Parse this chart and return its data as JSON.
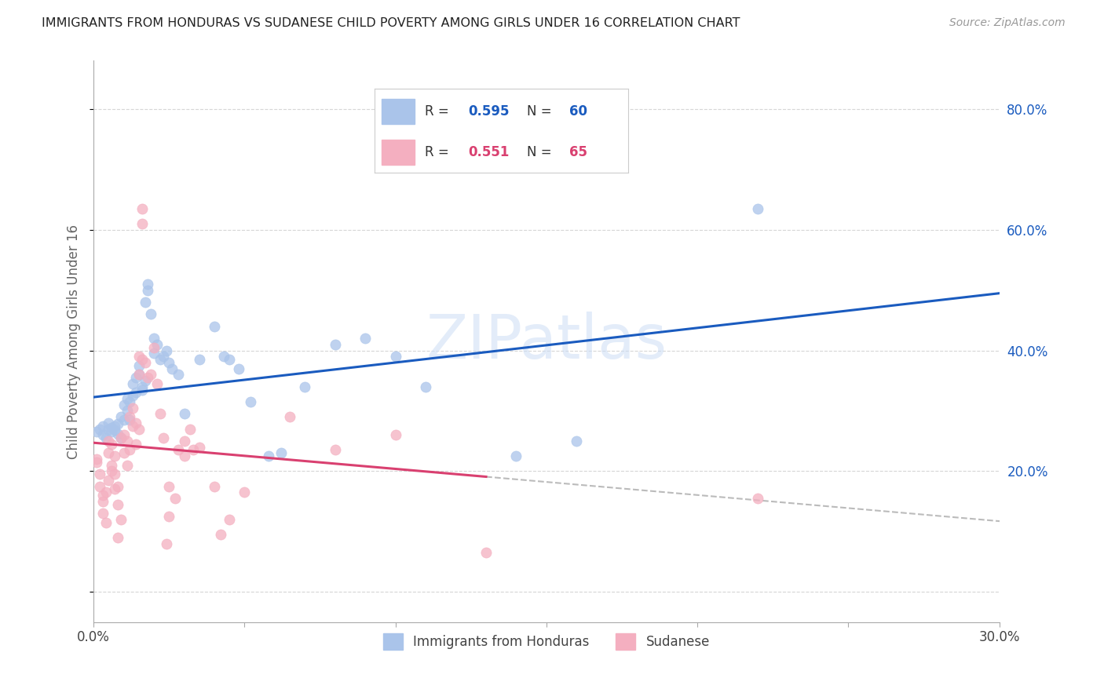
{
  "title": "IMMIGRANTS FROM HONDURAS VS SUDANESE CHILD POVERTY AMONG GIRLS UNDER 16 CORRELATION CHART",
  "source": "Source: ZipAtlas.com",
  "ylabel": "Child Poverty Among Girls Under 16",
  "xlim": [
    0.0,
    0.3
  ],
  "ylim": [
    -0.05,
    0.88
  ],
  "yticks": [
    0.0,
    0.2,
    0.4,
    0.6,
    0.8
  ],
  "yticklabels": [
    "",
    "20.0%",
    "40.0%",
    "60.0%",
    "80.0%"
  ],
  "legend_labels": [
    "Immigrants from Honduras",
    "Sudanese"
  ],
  "blue_R": "0.595",
  "blue_N": "60",
  "pink_R": "0.551",
  "pink_N": "65",
  "blue_color": "#aac4ea",
  "pink_color": "#f4afc0",
  "blue_line_color": "#1a5bbf",
  "pink_line_color": "#d94070",
  "blue_scatter": [
    [
      0.001,
      0.265
    ],
    [
      0.002,
      0.27
    ],
    [
      0.003,
      0.26
    ],
    [
      0.003,
      0.275
    ],
    [
      0.004,
      0.255
    ],
    [
      0.005,
      0.27
    ],
    [
      0.005,
      0.28
    ],
    [
      0.006,
      0.272
    ],
    [
      0.006,
      0.265
    ],
    [
      0.007,
      0.275
    ],
    [
      0.007,
      0.268
    ],
    [
      0.008,
      0.262
    ],
    [
      0.008,
      0.278
    ],
    [
      0.009,
      0.255
    ],
    [
      0.009,
      0.29
    ],
    [
      0.01,
      0.285
    ],
    [
      0.01,
      0.31
    ],
    [
      0.011,
      0.32
    ],
    [
      0.011,
      0.3
    ],
    [
      0.012,
      0.315
    ],
    [
      0.012,
      0.285
    ],
    [
      0.013,
      0.325
    ],
    [
      0.013,
      0.345
    ],
    [
      0.014,
      0.33
    ],
    [
      0.014,
      0.355
    ],
    [
      0.015,
      0.36
    ],
    [
      0.015,
      0.375
    ],
    [
      0.016,
      0.335
    ],
    [
      0.016,
      0.34
    ],
    [
      0.017,
      0.35
    ],
    [
      0.017,
      0.48
    ],
    [
      0.018,
      0.5
    ],
    [
      0.018,
      0.51
    ],
    [
      0.019,
      0.46
    ],
    [
      0.02,
      0.42
    ],
    [
      0.02,
      0.395
    ],
    [
      0.021,
      0.41
    ],
    [
      0.022,
      0.385
    ],
    [
      0.023,
      0.39
    ],
    [
      0.024,
      0.4
    ],
    [
      0.025,
      0.38
    ],
    [
      0.026,
      0.37
    ],
    [
      0.028,
      0.36
    ],
    [
      0.03,
      0.295
    ],
    [
      0.035,
      0.385
    ],
    [
      0.04,
      0.44
    ],
    [
      0.043,
      0.39
    ],
    [
      0.045,
      0.385
    ],
    [
      0.048,
      0.37
    ],
    [
      0.052,
      0.315
    ],
    [
      0.058,
      0.225
    ],
    [
      0.062,
      0.23
    ],
    [
      0.07,
      0.34
    ],
    [
      0.08,
      0.41
    ],
    [
      0.09,
      0.42
    ],
    [
      0.1,
      0.39
    ],
    [
      0.11,
      0.34
    ],
    [
      0.14,
      0.225
    ],
    [
      0.16,
      0.25
    ],
    [
      0.22,
      0.635
    ]
  ],
  "pink_scatter": [
    [
      0.001,
      0.22
    ],
    [
      0.001,
      0.215
    ],
    [
      0.002,
      0.195
    ],
    [
      0.002,
      0.175
    ],
    [
      0.003,
      0.16
    ],
    [
      0.003,
      0.15
    ],
    [
      0.003,
      0.13
    ],
    [
      0.004,
      0.165
    ],
    [
      0.004,
      0.115
    ],
    [
      0.005,
      0.185
    ],
    [
      0.005,
      0.23
    ],
    [
      0.005,
      0.25
    ],
    [
      0.006,
      0.245
    ],
    [
      0.006,
      0.21
    ],
    [
      0.006,
      0.2
    ],
    [
      0.007,
      0.225
    ],
    [
      0.007,
      0.195
    ],
    [
      0.007,
      0.17
    ],
    [
      0.008,
      0.175
    ],
    [
      0.008,
      0.145
    ],
    [
      0.008,
      0.09
    ],
    [
      0.009,
      0.12
    ],
    [
      0.009,
      0.255
    ],
    [
      0.01,
      0.26
    ],
    [
      0.01,
      0.23
    ],
    [
      0.011,
      0.25
    ],
    [
      0.011,
      0.21
    ],
    [
      0.012,
      0.235
    ],
    [
      0.012,
      0.29
    ],
    [
      0.013,
      0.305
    ],
    [
      0.013,
      0.275
    ],
    [
      0.014,
      0.28
    ],
    [
      0.014,
      0.245
    ],
    [
      0.015,
      0.27
    ],
    [
      0.015,
      0.36
    ],
    [
      0.015,
      0.39
    ],
    [
      0.016,
      0.385
    ],
    [
      0.016,
      0.61
    ],
    [
      0.016,
      0.635
    ],
    [
      0.017,
      0.38
    ],
    [
      0.018,
      0.355
    ],
    [
      0.019,
      0.36
    ],
    [
      0.02,
      0.405
    ],
    [
      0.021,
      0.345
    ],
    [
      0.022,
      0.295
    ],
    [
      0.023,
      0.255
    ],
    [
      0.024,
      0.08
    ],
    [
      0.025,
      0.125
    ],
    [
      0.025,
      0.175
    ],
    [
      0.027,
      0.155
    ],
    [
      0.028,
      0.235
    ],
    [
      0.03,
      0.25
    ],
    [
      0.03,
      0.225
    ],
    [
      0.032,
      0.27
    ],
    [
      0.033,
      0.235
    ],
    [
      0.035,
      0.24
    ],
    [
      0.04,
      0.175
    ],
    [
      0.042,
      0.095
    ],
    [
      0.045,
      0.12
    ],
    [
      0.05,
      0.165
    ],
    [
      0.065,
      0.29
    ],
    [
      0.08,
      0.235
    ],
    [
      0.1,
      0.26
    ],
    [
      0.13,
      0.065
    ],
    [
      0.22,
      0.155
    ]
  ],
  "watermark": "ZIPatlas",
  "background_color": "#ffffff",
  "grid_color": "#cccccc",
  "title_color": "#222222",
  "axis_label_color": "#666666",
  "tick_color_right": "#1a5bbf",
  "dashed_line_color": "#bbbbbb"
}
